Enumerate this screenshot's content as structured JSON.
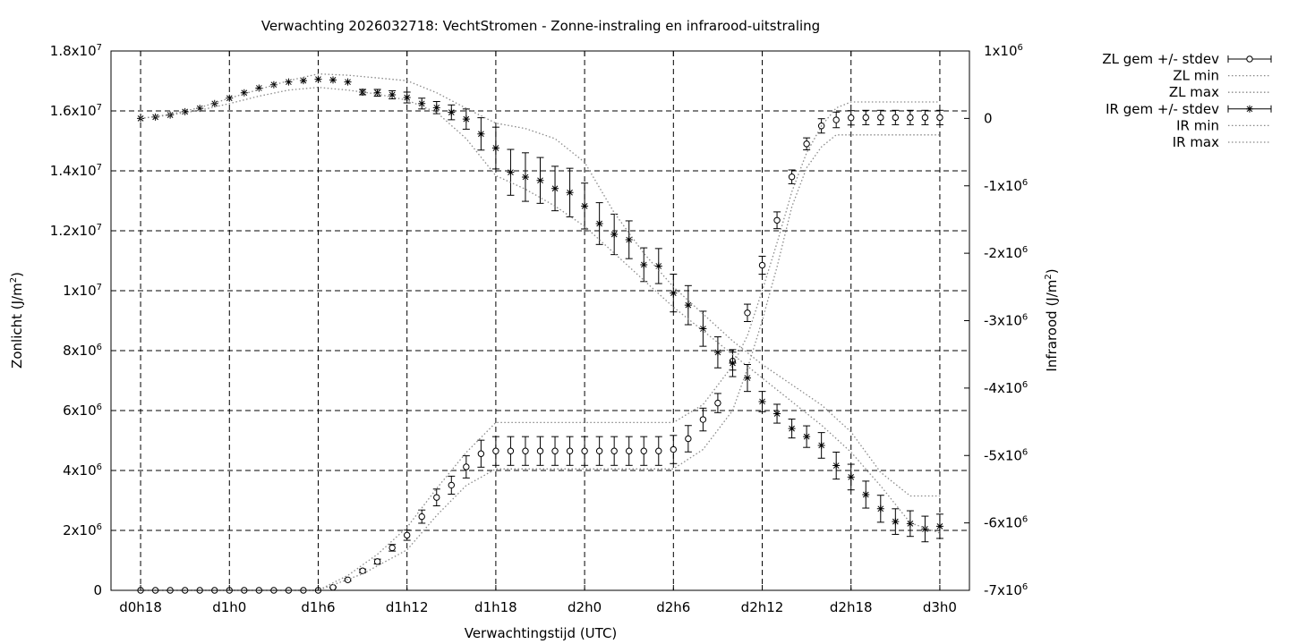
{
  "chart_data": {
    "type": "line",
    "title": "Verwachting 2026032718: VechtStromen - Zonne-instraling en infrarood-uitstraling",
    "xlabel": "Verwachtingstijd (UTC)",
    "ylabel_base": "Zonlicht (J/m",
    "ylabel_sup": "2",
    "ylabel_end": ")",
    "y2label_base": "Infrarood (J/m",
    "y2label_sup": "2",
    "y2label_end": ")",
    "x_ticks": [
      "d0h18",
      "d1h0",
      "d1h6",
      "d1h12",
      "d1h18",
      "d2h0",
      "d2h6",
      "d2h12",
      "d2h18",
      "d3h0"
    ],
    "x_tick_hours": [
      18,
      24,
      30,
      36,
      42,
      48,
      54,
      60,
      66,
      72
    ],
    "xlim": [
      16,
      74
    ],
    "ylim": [
      0,
      18000000
    ],
    "y2lim": [
      -7000000,
      1000000
    ],
    "y_ticks": [
      {
        "v": 0,
        "m": "0",
        "e": ""
      },
      {
        "v": 2000000,
        "m": "2x10",
        "e": "6"
      },
      {
        "v": 4000000,
        "m": "4x10",
        "e": "6"
      },
      {
        "v": 6000000,
        "m": "6x10",
        "e": "6"
      },
      {
        "v": 8000000,
        "m": "8x10",
        "e": "6"
      },
      {
        "v": 10000000,
        "m": "1x10",
        "e": "7"
      },
      {
        "v": 12000000,
        "m": "1.2x10",
        "e": "7"
      },
      {
        "v": 14000000,
        "m": "1.4x10",
        "e": "7"
      },
      {
        "v": 16000000,
        "m": "1.6x10",
        "e": "7"
      },
      {
        "v": 18000000,
        "m": "1.8x10",
        "e": "7"
      }
    ],
    "y2_ticks": [
      {
        "v": -7000000,
        "m": "-7x10",
        "e": "6"
      },
      {
        "v": -6000000,
        "m": "-6x10",
        "e": "6"
      },
      {
        "v": -5000000,
        "m": "-5x10",
        "e": "6"
      },
      {
        "v": -4000000,
        "m": "-4x10",
        "e": "6"
      },
      {
        "v": -3000000,
        "m": "-3x10",
        "e": "6"
      },
      {
        "v": -2000000,
        "m": "-2x10",
        "e": "6"
      },
      {
        "v": -1000000,
        "m": "-1x10",
        "e": "6"
      },
      {
        "v": 0,
        "m": "0",
        "e": ""
      },
      {
        "v": 1000000,
        "m": "1x10",
        "e": "6"
      }
    ],
    "grid": true,
    "legend_position": "outside-right",
    "x": [
      18,
      19,
      20,
      21,
      22,
      23,
      24,
      25,
      26,
      27,
      28,
      29,
      30,
      31,
      32,
      33,
      34,
      35,
      36,
      37,
      38,
      39,
      40,
      41,
      42,
      43,
      44,
      45,
      46,
      47,
      48,
      49,
      50,
      51,
      52,
      53,
      54,
      55,
      56,
      57,
      58,
      59,
      60,
      61,
      62,
      63,
      64,
      65,
      66,
      67,
      68,
      69,
      70,
      71,
      72
    ],
    "series": [
      {
        "name": "ZL gem +/- stdev",
        "axis": "y",
        "marker": "circle",
        "mean": [
          0,
          0,
          0,
          0,
          0,
          0,
          0,
          0,
          0,
          0,
          0,
          0,
          0,
          100000,
          350000,
          650000,
          960000,
          1420000,
          1840000,
          2460000,
          3100000,
          3510000,
          4120000,
          4560000,
          4650000,
          4650000,
          4650000,
          4650000,
          4650000,
          4650000,
          4650000,
          4650000,
          4650000,
          4650000,
          4650000,
          4650000,
          4700000,
          5060000,
          5700000,
          6250000,
          7650000,
          9260000,
          10850000,
          12350000,
          13800000,
          14900000,
          15500000,
          15700000,
          15770000,
          15780000,
          15780000,
          15780000,
          15780000,
          15780000,
          15780000
        ],
        "stdev": [
          0,
          0,
          0,
          0,
          0,
          0,
          0,
          0,
          0,
          0,
          0,
          0,
          0,
          20000,
          40000,
          60000,
          80000,
          110000,
          170000,
          220000,
          280000,
          300000,
          370000,
          450000,
          480000,
          480000,
          480000,
          480000,
          480000,
          480000,
          480000,
          480000,
          480000,
          480000,
          480000,
          480000,
          470000,
          440000,
          380000,
          320000,
          300000,
          290000,
          300000,
          280000,
          230000,
          200000,
          240000,
          260000,
          240000,
          240000,
          240000,
          240000,
          240000,
          240000,
          240000
        ]
      },
      {
        "name": "ZL min",
        "axis": "y",
        "x": [
          18,
          30,
          33,
          36,
          38,
          40,
          42,
          54,
          56,
          58,
          59,
          60,
          61,
          62,
          63,
          64,
          65,
          66,
          72
        ],
        "values": [
          0,
          0,
          550000,
          1350000,
          2500000,
          3500000,
          4050000,
          4050000,
          4700000,
          6000000,
          7400000,
          9000000,
          10800000,
          12800000,
          14100000,
          14800000,
          15200000,
          15200000,
          15200000
        ]
      },
      {
        "name": "ZL max",
        "axis": "y",
        "x": [
          18,
          30,
          32,
          34,
          36,
          38,
          40,
          42,
          54,
          56,
          58,
          59,
          60,
          61,
          62,
          63,
          64,
          65,
          66,
          72
        ],
        "values": [
          0,
          0,
          500000,
          1200000,
          2100000,
          3400000,
          4600000,
          5600000,
          5600000,
          6200000,
          7500000,
          8500000,
          10000000,
          11600000,
          13300000,
          14600000,
          15500000,
          16100000,
          16300000,
          16300000
        ]
      },
      {
        "name": "IR gem +/- stdev",
        "axis": "y2",
        "marker": "star",
        "mean": [
          0,
          20000,
          50000,
          100000,
          150000,
          220000,
          300000,
          380000,
          450000,
          500000,
          540000,
          560000,
          580000,
          570000,
          540000,
          390000,
          380000,
          350000,
          310000,
          220000,
          160000,
          90000,
          -10000,
          -230000,
          -440000,
          -800000,
          -870000,
          -920000,
          -1040000,
          -1100000,
          -1300000,
          -1560000,
          -1720000,
          -1800000,
          -2170000,
          -2190000,
          -2590000,
          -2770000,
          -3120000,
          -3470000,
          -3630000,
          -3850000,
          -4200000,
          -4380000,
          -4600000,
          -4720000,
          -4850000,
          -5150000,
          -5320000,
          -5580000,
          -5790000,
          -5980000,
          -6010000,
          -6090000,
          -6050000
        ],
        "stdev": [
          0,
          0,
          0,
          0,
          0,
          0,
          0,
          0,
          0,
          0,
          0,
          0,
          0,
          0,
          0,
          40000,
          50000,
          60000,
          80000,
          80000,
          90000,
          110000,
          150000,
          240000,
          310000,
          340000,
          360000,
          340000,
          330000,
          360000,
          340000,
          310000,
          300000,
          280000,
          250000,
          260000,
          280000,
          290000,
          260000,
          230000,
          200000,
          200000,
          150000,
          140000,
          140000,
          160000,
          190000,
          200000,
          190000,
          200000,
          200000,
          190000,
          190000,
          190000,
          180000
        ]
      },
      {
        "name": "IR min",
        "axis": "y2",
        "x": [
          18,
          20,
          22,
          24,
          26,
          28,
          30,
          32,
          34,
          36,
          38,
          40,
          42,
          44,
          46,
          48,
          50,
          52,
          54,
          56,
          58,
          60,
          62,
          64,
          66,
          68,
          70,
          72
        ],
        "values": [
          0,
          50000,
          120000,
          220000,
          330000,
          420000,
          460000,
          420000,
          360000,
          270000,
          90000,
          -300000,
          -850000,
          -1050000,
          -1300000,
          -1600000,
          -2000000,
          -2400000,
          -2800000,
          -3150000,
          -3500000,
          -3850000,
          -4200000,
          -4550000,
          -4950000,
          -5450000,
          -6000000,
          -6150000
        ]
      },
      {
        "name": "IR max",
        "axis": "y2",
        "x": [
          18,
          20,
          22,
          24,
          26,
          28,
          30,
          32,
          34,
          36,
          38,
          40,
          42,
          44,
          46,
          48,
          50,
          52,
          54,
          56,
          58,
          60,
          62,
          64,
          66,
          68,
          70,
          72
        ],
        "values": [
          0,
          60000,
          160000,
          300000,
          430000,
          560000,
          660000,
          640000,
          600000,
          560000,
          380000,
          150000,
          -70000,
          -150000,
          -300000,
          -650000,
          -1400000,
          -2000000,
          -2500000,
          -2900000,
          -3300000,
          -3650000,
          -3950000,
          -4250000,
          -4650000,
          -5250000,
          -5600000,
          -5600000
        ]
      }
    ]
  }
}
